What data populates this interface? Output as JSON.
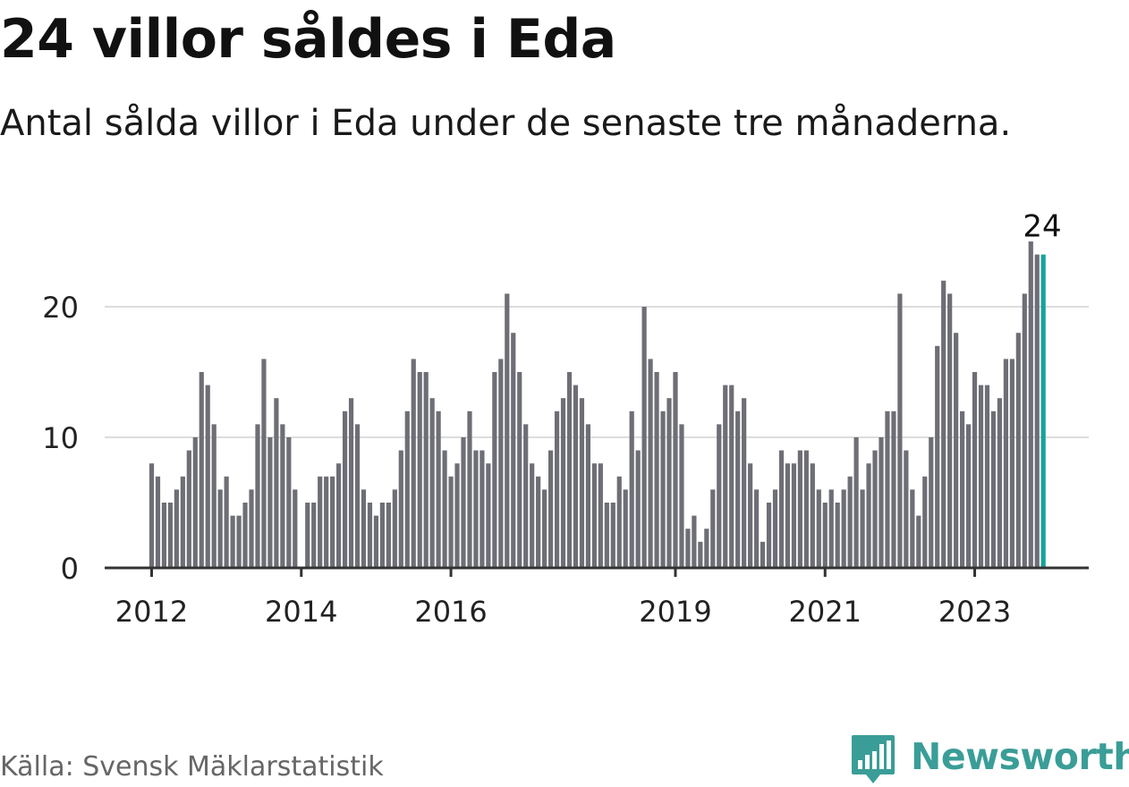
{
  "header": {
    "title": "24 villor såldes i Eda",
    "subtitle": "Antal sålda villor i Eda under de senaste tre månaderna."
  },
  "footer": {
    "source": "Källa: Svensk Mäklarstatistik",
    "brand": "Newsworthy"
  },
  "colors": {
    "bar": "#6e6e76",
    "highlight": "#16a39a",
    "grid": "#dddddd",
    "axis": "#333333",
    "brand": "#3a9d97"
  },
  "icons": {
    "logo": "bar-chart-speech-bubble-icon"
  },
  "chart_data": {
    "type": "bar",
    "title": "",
    "xlabel": "",
    "ylabel": "",
    "ylim": [
      0,
      27
    ],
    "yticks": [
      0,
      10,
      20
    ],
    "grid": true,
    "x_tick_labels": [
      "2012",
      "2014",
      "2016",
      "2019",
      "2021",
      "2023"
    ],
    "x_tick_bar_index": [
      0,
      24,
      48,
      84,
      108,
      132
    ],
    "highlight_label": "24",
    "values": [
      8,
      7,
      5,
      5,
      6,
      7,
      9,
      10,
      15,
      14,
      11,
      6,
      7,
      4,
      4,
      5,
      6,
      11,
      16,
      10,
      13,
      11,
      10,
      6,
      0,
      5,
      5,
      7,
      7,
      7,
      8,
      12,
      13,
      11,
      6,
      5,
      4,
      5,
      5,
      6,
      9,
      12,
      16,
      15,
      15,
      13,
      12,
      9,
      7,
      8,
      10,
      12,
      9,
      9,
      8,
      15,
      16,
      21,
      18,
      15,
      11,
      8,
      7,
      6,
      9,
      12,
      13,
      15,
      14,
      13,
      11,
      8,
      8,
      5,
      5,
      7,
      6,
      12,
      9,
      20,
      16,
      15,
      12,
      13,
      15,
      11,
      3,
      4,
      2,
      3,
      6,
      11,
      14,
      14,
      12,
      13,
      8,
      6,
      2,
      5,
      6,
      9,
      8,
      8,
      9,
      9,
      8,
      6,
      5,
      6,
      5,
      6,
      7,
      10,
      6,
      8,
      9,
      10,
      12,
      12,
      21,
      9,
      6,
      4,
      7,
      10,
      17,
      22,
      21,
      18,
      12,
      11,
      15,
      14,
      14,
      12,
      13,
      16,
      16,
      18,
      21,
      25,
      24,
      24
    ]
  }
}
